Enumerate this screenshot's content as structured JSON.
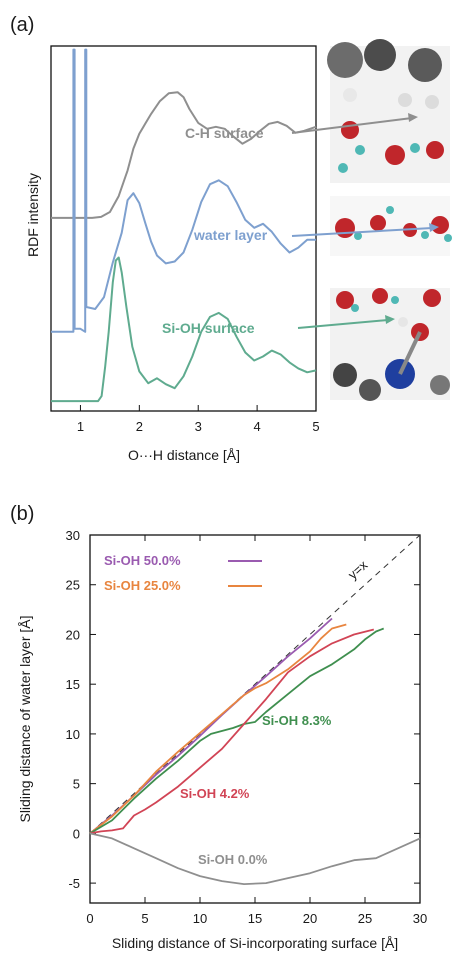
{
  "panel_a_label": "(a)",
  "panel_b_label": "(b)",
  "colors": {
    "ch": "#8f8f8f",
    "water": "#7ea0cf",
    "sioh": "#5fab8f",
    "sioh500": "#9a5bb0",
    "sioh250": "#e8853f",
    "sioh83": "#3f8f4f",
    "sioh42": "#d14455",
    "sioh00": "#8f8f8f"
  },
  "chart_data": [
    {
      "type": "line",
      "xlabel": "O···H distance [Å]",
      "ylabel": "RDF intensity",
      "xlim": [
        0.5,
        5
      ],
      "x_ticks": [
        "1",
        "2",
        "3",
        "4",
        "5"
      ],
      "series": [
        {
          "name": "C-H surface",
          "points": [
            [
              0.5,
              1.9
            ],
            [
              1.0,
              1.9
            ],
            [
              1.2,
              1.9
            ],
            [
              1.35,
              1.91
            ],
            [
              1.5,
              1.96
            ],
            [
              1.65,
              2.12
            ],
            [
              1.8,
              2.38
            ],
            [
              1.9,
              2.6
            ],
            [
              2.0,
              2.75
            ],
            [
              2.1,
              2.85
            ],
            [
              2.2,
              2.95
            ],
            [
              2.35,
              3.08
            ],
            [
              2.5,
              3.16
            ],
            [
              2.65,
              3.17
            ],
            [
              2.75,
              3.12
            ],
            [
              2.85,
              3.0
            ],
            [
              3.0,
              2.86
            ],
            [
              3.15,
              2.8
            ],
            [
              3.3,
              2.82
            ],
            [
              3.45,
              2.8
            ],
            [
              3.6,
              2.72
            ],
            [
              3.75,
              2.65
            ],
            [
              3.9,
              2.7
            ],
            [
              4.05,
              2.78
            ],
            [
              4.2,
              2.85
            ],
            [
              4.35,
              2.87
            ],
            [
              4.5,
              2.83
            ],
            [
              4.65,
              2.76
            ],
            [
              4.8,
              2.78
            ],
            [
              5.0,
              2.82
            ]
          ]
        },
        {
          "name": "water layer",
          "points": [
            [
              0.5,
              0.75
            ],
            [
              0.88,
              0.75
            ],
            [
              0.88,
              3.6
            ],
            [
              0.9,
              3.6
            ],
            [
              0.9,
              0.78
            ],
            [
              1.0,
              0.78
            ],
            [
              1.08,
              0.75
            ],
            [
              1.08,
              3.6
            ],
            [
              1.1,
              3.6
            ],
            [
              1.1,
              1.0
            ],
            [
              1.25,
              0.98
            ],
            [
              1.4,
              1.1
            ],
            [
              1.55,
              1.45
            ],
            [
              1.7,
              1.75
            ],
            [
              1.8,
              2.08
            ],
            [
              1.9,
              2.15
            ],
            [
              2.0,
              2.05
            ],
            [
              2.1,
              1.85
            ],
            [
              2.2,
              1.66
            ],
            [
              2.3,
              1.52
            ],
            [
              2.45,
              1.44
            ],
            [
              2.6,
              1.46
            ],
            [
              2.75,
              1.55
            ],
            [
              2.9,
              1.78
            ],
            [
              3.05,
              2.06
            ],
            [
              3.2,
              2.24
            ],
            [
              3.35,
              2.28
            ],
            [
              3.5,
              2.22
            ],
            [
              3.65,
              2.06
            ],
            [
              3.8,
              1.88
            ],
            [
              3.95,
              1.8
            ],
            [
              4.1,
              1.84
            ],
            [
              4.25,
              1.76
            ],
            [
              4.4,
              1.64
            ],
            [
              4.55,
              1.55
            ],
            [
              4.7,
              1.6
            ],
            [
              4.85,
              1.68
            ],
            [
              5.0,
              1.68
            ]
          ]
        },
        {
          "name": "Si-OH surface",
          "points": [
            [
              0.5,
              0.05
            ],
            [
              1.0,
              0.05
            ],
            [
              1.3,
              0.05
            ],
            [
              1.36,
              0.1
            ],
            [
              1.42,
              0.4
            ],
            [
              1.48,
              0.75
            ],
            [
              1.55,
              1.25
            ],
            [
              1.6,
              1.47
            ],
            [
              1.65,
              1.5
            ],
            [
              1.7,
              1.35
            ],
            [
              1.78,
              1.0
            ],
            [
              1.88,
              0.6
            ],
            [
              2.0,
              0.35
            ],
            [
              2.15,
              0.23
            ],
            [
              2.3,
              0.28
            ],
            [
              2.45,
              0.22
            ],
            [
              2.6,
              0.18
            ],
            [
              2.75,
              0.3
            ],
            [
              2.9,
              0.5
            ],
            [
              3.05,
              0.75
            ],
            [
              3.2,
              0.9
            ],
            [
              3.35,
              0.94
            ],
            [
              3.5,
              0.88
            ],
            [
              3.65,
              0.7
            ],
            [
              3.8,
              0.54
            ],
            [
              3.95,
              0.46
            ],
            [
              4.1,
              0.5
            ],
            [
              4.25,
              0.56
            ],
            [
              4.4,
              0.52
            ],
            [
              4.55,
              0.44
            ],
            [
              4.7,
              0.38
            ],
            [
              4.85,
              0.34
            ],
            [
              5.0,
              0.36
            ]
          ]
        }
      ]
    },
    {
      "type": "line",
      "xlabel": "Sliding distance of Si-incorporating surface [Å]",
      "ylabel": "Sliding distance of water layer [Å]",
      "xlim": [
        0,
        30
      ],
      "ylim": [
        -7,
        30
      ],
      "x_ticks": [
        "0",
        "5",
        "10",
        "15",
        "20",
        "25",
        "30"
      ],
      "y_ticks": [
        "-5",
        "0",
        "5",
        "10",
        "15",
        "20",
        "25",
        "30"
      ],
      "reference_line_label": "y=x",
      "series": [
        {
          "name": "Si-OH 50.0%",
          "points": [
            [
              0,
              0
            ],
            [
              2,
              1.8
            ],
            [
              4,
              3.8
            ],
            [
              6,
              5.9
            ],
            [
              8,
              7.8
            ],
            [
              10,
              9.8
            ],
            [
              12,
              11.9
            ],
            [
              14,
              13.9
            ],
            [
              16,
              15.8
            ],
            [
              18,
              17.8
            ],
            [
              20,
              19.6
            ],
            [
              22,
              21.6
            ]
          ]
        },
        {
          "name": "Si-OH 25.0%",
          "points": [
            [
              0,
              0
            ],
            [
              2,
              1.7
            ],
            [
              4,
              3.8
            ],
            [
              6,
              6.2
            ],
            [
              8,
              8.2
            ],
            [
              10,
              10.1
            ],
            [
              12,
              12.0
            ],
            [
              14,
              13.9
            ],
            [
              15,
              14.6
            ],
            [
              16,
              15.1
            ],
            [
              18,
              16.5
            ],
            [
              20,
              18.3
            ],
            [
              21,
              19.6
            ],
            [
              22,
              20.6
            ],
            [
              23.3,
              21.0
            ]
          ]
        },
        {
          "name": "Si-OH 8.3%",
          "points": [
            [
              0,
              0
            ],
            [
              2,
              1.3
            ],
            [
              4,
              3.5
            ],
            [
              6,
              5.5
            ],
            [
              8,
              7.3
            ],
            [
              9,
              8.3
            ],
            [
              10,
              9.3
            ],
            [
              11,
              10.0
            ],
            [
              13,
              10.6
            ],
            [
              14,
              11.0
            ],
            [
              15,
              11.2
            ],
            [
              16,
              12.2
            ],
            [
              18,
              14.0
            ],
            [
              20,
              15.8
            ],
            [
              22,
              17.0
            ],
            [
              24,
              18.5
            ],
            [
              25,
              19.5
            ],
            [
              26,
              20.3
            ],
            [
              26.7,
              20.6
            ]
          ]
        },
        {
          "name": "Si-OH 4.2%",
          "points": [
            [
              0,
              0
            ],
            [
              1,
              0.2
            ],
            [
              2,
              0.3
            ],
            [
              3,
              0.5
            ],
            [
              4,
              1.8
            ],
            [
              5,
              2.4
            ],
            [
              6,
              3.1
            ],
            [
              8,
              4.7
            ],
            [
              10,
              6.6
            ],
            [
              12,
              8.5
            ],
            [
              14,
              11.0
            ],
            [
              16,
              13.5
            ],
            [
              18,
              16.2
            ],
            [
              20,
              17.8
            ],
            [
              22,
              19.1
            ],
            [
              24,
              20.0
            ],
            [
              25.8,
              20.5
            ]
          ]
        },
        {
          "name": "Si-OH 0.0%",
          "points": [
            [
              0,
              0
            ],
            [
              2,
              -0.5
            ],
            [
              4,
              -1.5
            ],
            [
              6,
              -2.5
            ],
            [
              8,
              -3.5
            ],
            [
              10,
              -4.3
            ],
            [
              12,
              -4.8
            ],
            [
              14,
              -5.1
            ],
            [
              16,
              -5.0
            ],
            [
              18,
              -4.5
            ],
            [
              20,
              -4.0
            ],
            [
              22,
              -3.3
            ],
            [
              24,
              -2.7
            ],
            [
              26,
              -2.5
            ],
            [
              28,
              -1.5
            ],
            [
              30,
              -0.5
            ]
          ]
        }
      ]
    }
  ]
}
